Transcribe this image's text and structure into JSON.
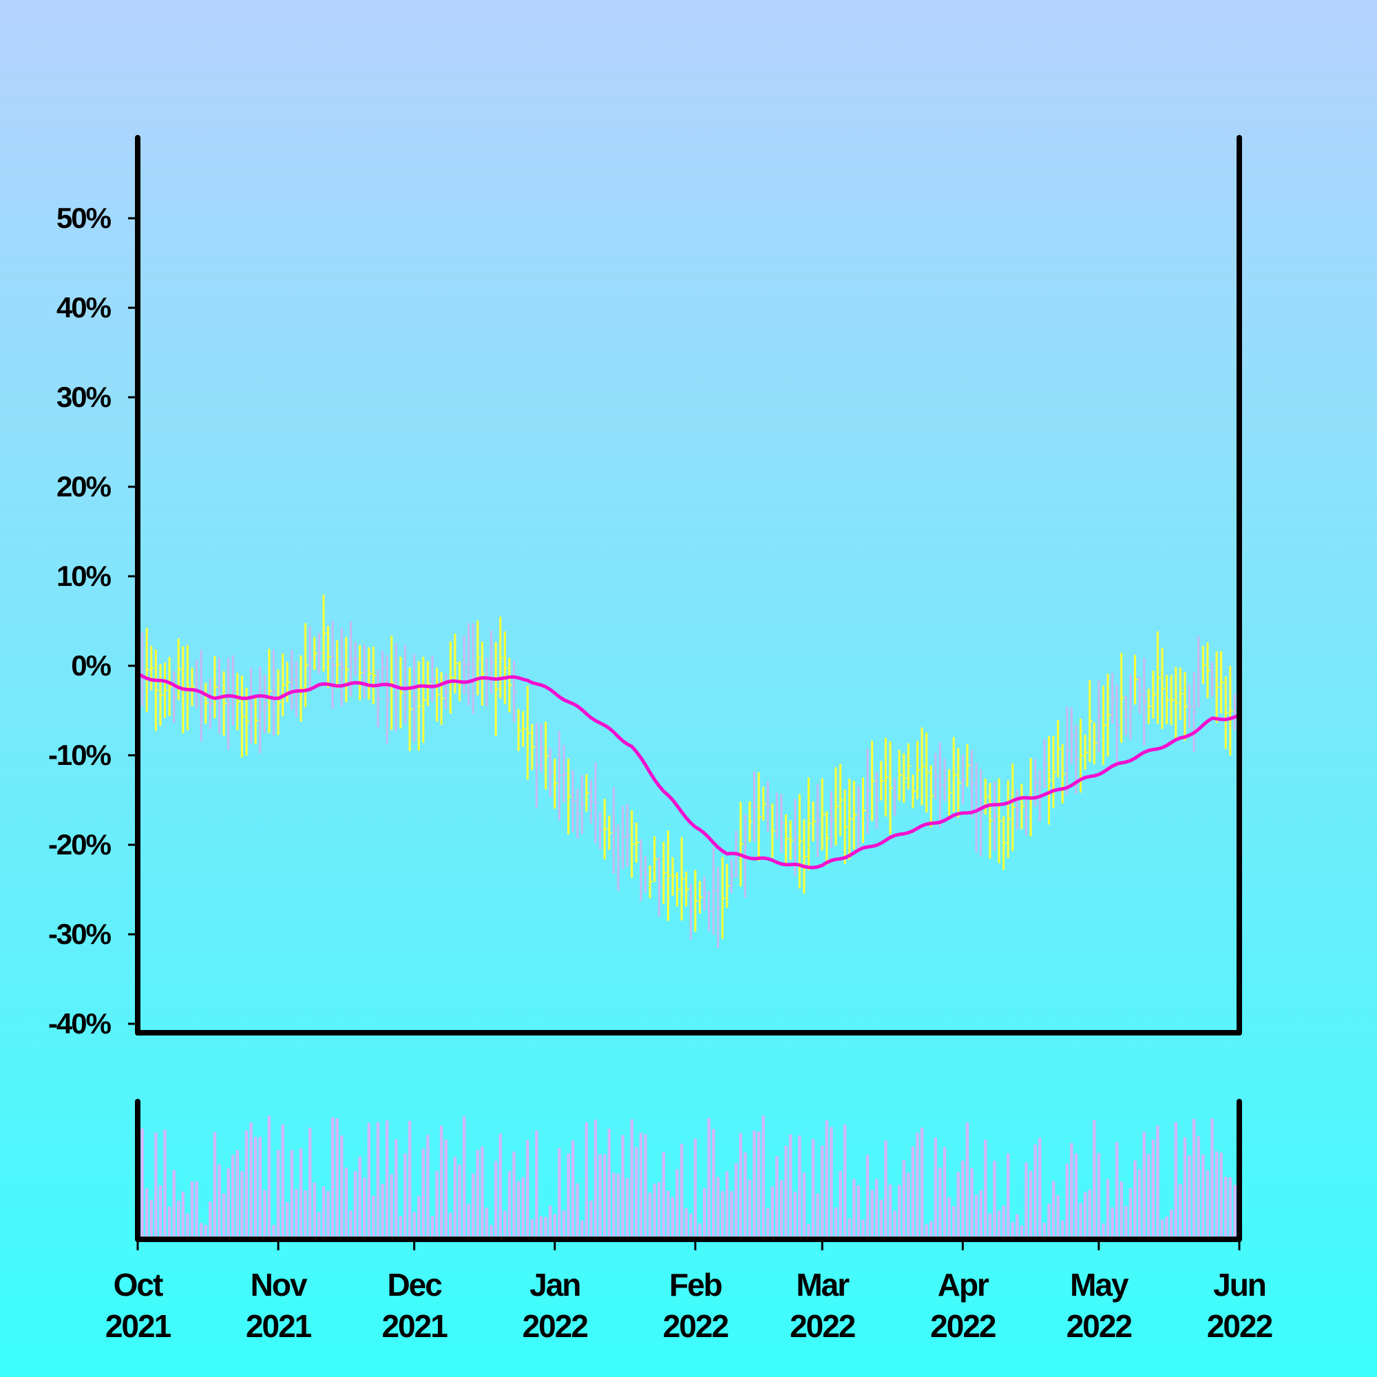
{
  "chart_data": {
    "type": "ohlc",
    "title": "",
    "xlabel": "",
    "ylabel": "",
    "ylim": [
      -40,
      58
    ],
    "y_ticks": [
      "-40%",
      "-30%",
      "-20%",
      "-10%",
      "0%",
      "10%",
      "20%",
      "30%",
      "40%",
      "50%"
    ],
    "y_tick_values": [
      -40,
      -30,
      -20,
      -10,
      0,
      10,
      20,
      30,
      40,
      50
    ],
    "x_ticks": [
      {
        "month": "Oct",
        "year": "2021",
        "date": "2021-10-01"
      },
      {
        "month": "Nov",
        "year": "2021",
        "date": "2021-11-01"
      },
      {
        "month": "Dec",
        "year": "2021",
        "date": "2021-12-01"
      },
      {
        "month": "Jan",
        "year": "2022",
        "date": "2022-01-01"
      },
      {
        "month": "Feb",
        "year": "2022",
        "date": "2022-02-01"
      },
      {
        "month": "Mar",
        "year": "2022",
        "date": "2022-03-01"
      },
      {
        "month": "Apr",
        "year": "2022",
        "date": "2022-04-01"
      },
      {
        "month": "May",
        "year": "2022",
        "date": "2022-05-01"
      },
      {
        "month": "Jun",
        "year": "2022",
        "date": "2022-06-01"
      }
    ],
    "xlim": [
      "2021-10-01",
      "2022-06-01"
    ],
    "grid": false,
    "colors": {
      "up_bar": "#ffff33",
      "down_bar": "#c9b8ef",
      "moving_average": "#f20fcf",
      "volume": "#d2b6f7",
      "axis": "#000000"
    },
    "price_anchors": [
      [
        "2021-10-01",
        -1
      ],
      [
        "2021-10-15",
        -3
      ],
      [
        "2021-10-25",
        -5
      ],
      [
        "2021-11-05",
        -2
      ],
      [
        "2021-11-10",
        3
      ],
      [
        "2021-11-17",
        0
      ],
      [
        "2021-11-30",
        -4
      ],
      [
        "2021-12-10",
        -1
      ],
      [
        "2021-12-20",
        -1
      ],
      [
        "2021-12-26",
        -8
      ],
      [
        "2022-01-05",
        -14
      ],
      [
        "2022-01-15",
        -20
      ],
      [
        "2022-01-25",
        -24
      ],
      [
        "2022-02-02",
        -26
      ],
      [
        "2022-02-08",
        -25
      ],
      [
        "2022-02-15",
        -16
      ],
      [
        "2022-02-25",
        -20
      ],
      [
        "2022-03-10",
        -15
      ],
      [
        "2022-03-20",
        -13
      ],
      [
        "2022-04-01",
        -12
      ],
      [
        "2022-04-10",
        -18
      ],
      [
        "2022-04-20",
        -12
      ],
      [
        "2022-05-01",
        -7
      ],
      [
        "2022-05-10",
        -2
      ],
      [
        "2022-05-20",
        -5
      ],
      [
        "2022-05-26",
        0
      ],
      [
        "2022-06-01",
        -7
      ]
    ],
    "moving_average": [
      [
        "2021-10-01",
        -1
      ],
      [
        "2021-10-08",
        -2
      ],
      [
        "2021-10-18",
        -3.5
      ],
      [
        "2021-11-01",
        -3.5
      ],
      [
        "2021-11-10",
        -2.2
      ],
      [
        "2021-11-20",
        -2
      ],
      [
        "2021-12-01",
        -2.5
      ],
      [
        "2021-12-10",
        -1.8
      ],
      [
        "2021-12-20",
        -1.3
      ],
      [
        "2021-12-26",
        -1.5
      ],
      [
        "2022-01-01",
        -3
      ],
      [
        "2022-01-10",
        -6
      ],
      [
        "2022-01-18",
        -9
      ],
      [
        "2022-01-25",
        -14
      ],
      [
        "2022-02-01",
        -18
      ],
      [
        "2022-02-08",
        -21
      ],
      [
        "2022-02-15",
        -21.5
      ],
      [
        "2022-02-25",
        -22.5
      ],
      [
        "2022-03-01",
        -22.3
      ],
      [
        "2022-03-10",
        -20.5
      ],
      [
        "2022-03-20",
        -18.5
      ],
      [
        "2022-04-01",
        -16.5
      ],
      [
        "2022-04-10",
        -15.3
      ],
      [
        "2022-04-20",
        -14.3
      ],
      [
        "2022-05-01",
        -12
      ],
      [
        "2022-05-10",
        -10
      ],
      [
        "2022-05-20",
        -8
      ],
      [
        "2022-05-26",
        -6
      ],
      [
        "2022-06-01",
        -5.7
      ]
    ],
    "volume_panel": {
      "ylabel": "",
      "ticks": false
    }
  }
}
